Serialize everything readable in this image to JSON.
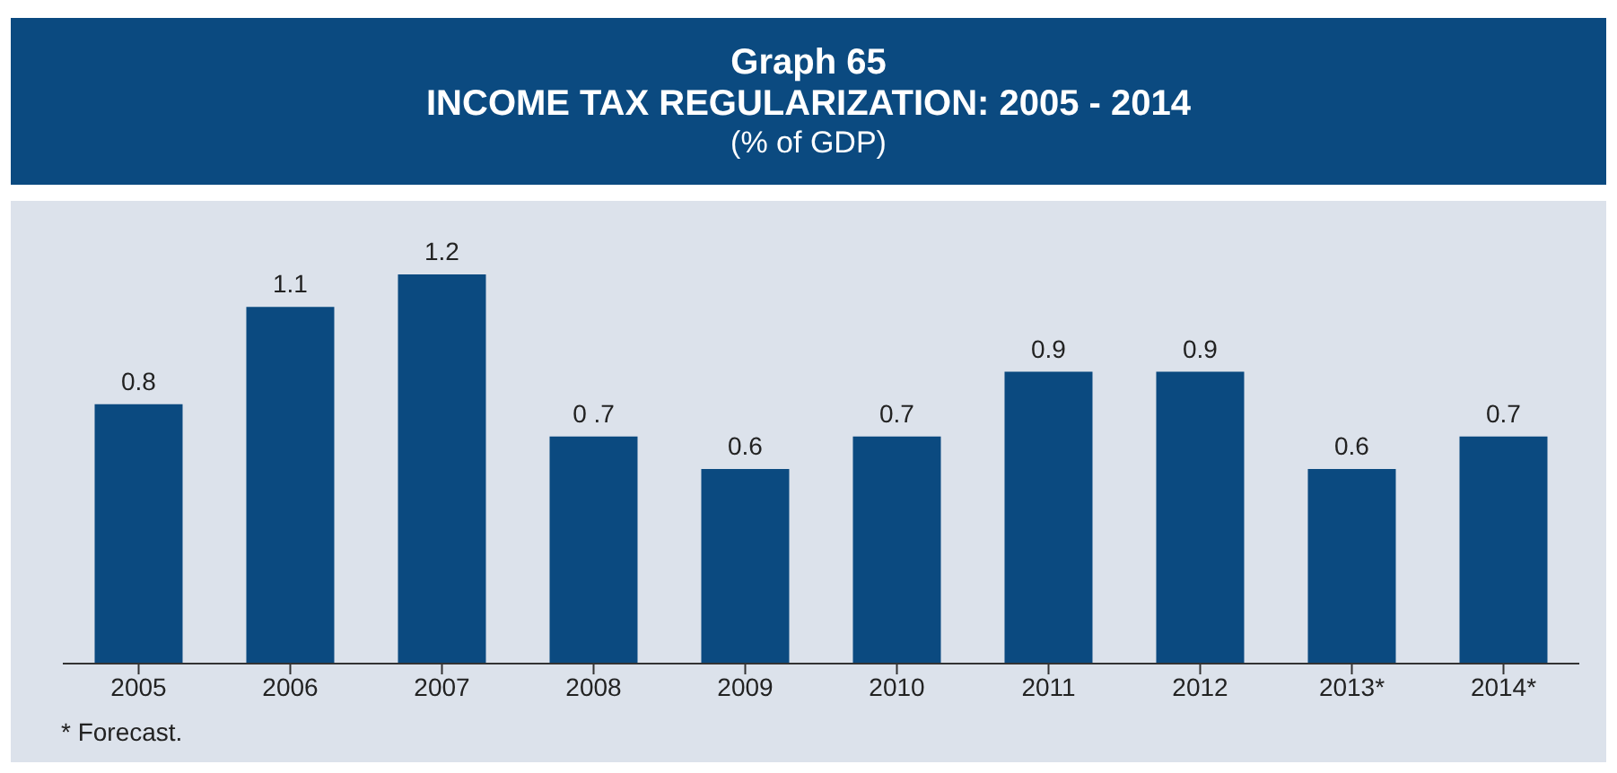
{
  "chart_data": {
    "type": "bar",
    "title": "INCOME TAX REGULARIZATION: 2005 - 2014",
    "subtitle": "(% of GDP)",
    "annotations": [
      "Graph 65",
      "* Forecast."
    ],
    "categories": [
      "2005",
      "2006",
      "2007",
      "2008",
      "2009",
      "2010",
      "2011",
      "2012",
      "2013*",
      "2014*"
    ],
    "values": [
      0.8,
      1.1,
      1.2,
      0.7,
      0.6,
      0.7,
      0.9,
      0.9,
      0.6,
      0.7
    ],
    "value_labels": [
      "0.8",
      "1.1",
      "1.2",
      "0 .7",
      "0.6",
      "0.7",
      "0.9",
      "0.9",
      "0.6",
      "0.7"
    ],
    "color": "#0b4a80"
  }
}
